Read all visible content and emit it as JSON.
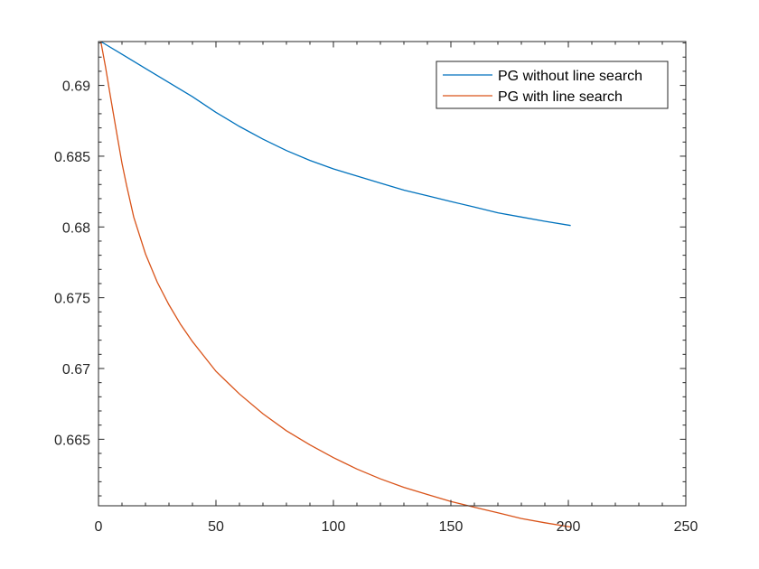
{
  "chart_data": {
    "type": "line",
    "title": "",
    "xlabel": "",
    "ylabel": "",
    "xlim": [
      0,
      250
    ],
    "ylim": [
      0.6603,
      0.6931
    ],
    "xticks": [
      0,
      50,
      100,
      150,
      200,
      250
    ],
    "xtick_labels": [
      "0",
      "50",
      "100",
      "150",
      "200",
      "250"
    ],
    "yticks": [
      0.665,
      0.67,
      0.675,
      0.68,
      0.685,
      0.69
    ],
    "ytick_labels": [
      "0.665",
      "0.67",
      "0.675",
      "0.68",
      "0.685",
      "0.69"
    ],
    "grid": false,
    "legend_position": "top-right",
    "series": [
      {
        "name": "PG without line search",
        "color": "#0072BD",
        "x": [
          1,
          10,
          20,
          30,
          40,
          50,
          60,
          70,
          80,
          90,
          100,
          110,
          120,
          130,
          140,
          150,
          160,
          170,
          180,
          190,
          201
        ],
        "y": [
          0.6931,
          0.6922,
          0.6912,
          0.6902,
          0.6892,
          0.6881,
          0.6871,
          0.6862,
          0.6854,
          0.6847,
          0.6841,
          0.6836,
          0.6831,
          0.6826,
          0.6822,
          0.6818,
          0.6814,
          0.681,
          0.6807,
          0.6804,
          0.6801
        ]
      },
      {
        "name": "PG with line search",
        "color": "#D95319",
        "x": [
          1,
          3,
          5,
          8,
          10,
          12,
          15,
          20,
          25,
          30,
          35,
          40,
          50,
          60,
          70,
          80,
          90,
          100,
          110,
          120,
          130,
          140,
          150,
          160,
          170,
          180,
          190,
          201
        ],
        "y": [
          0.6931,
          0.6913,
          0.6893,
          0.6864,
          0.6845,
          0.6829,
          0.6807,
          0.6781,
          0.6761,
          0.6745,
          0.6731,
          0.6719,
          0.6698,
          0.6682,
          0.6668,
          0.6656,
          0.6646,
          0.6637,
          0.6629,
          0.6622,
          0.6616,
          0.6611,
          0.6606,
          0.6602,
          0.6598,
          0.6594,
          0.6591,
          0.6588
        ]
      }
    ]
  }
}
